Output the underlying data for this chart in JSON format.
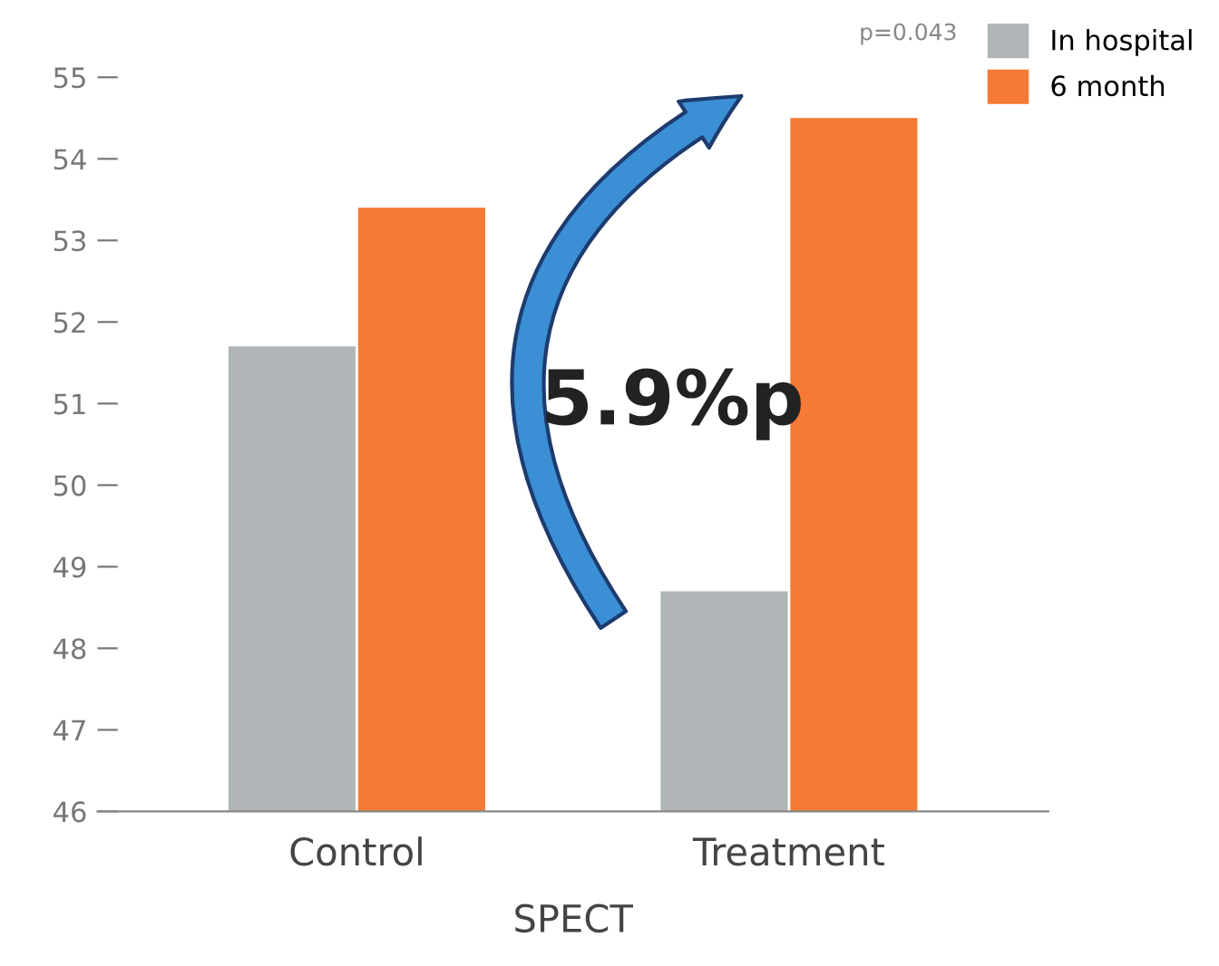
{
  "chart_data": {
    "type": "bar",
    "xlabel": "SPECT",
    "categories": [
      "Control",
      "Treatment"
    ],
    "series": [
      {
        "name": "In hospital",
        "color": "#b0b6b8",
        "values": [
          51.7,
          48.7
        ]
      },
      {
        "name": "6 month",
        "color": "#f47a35",
        "values": [
          53.4,
          54.5
        ]
      }
    ],
    "ylim": [
      46,
      55
    ],
    "yticks": [
      46,
      47,
      48,
      49,
      50,
      51,
      52,
      53,
      54,
      55
    ],
    "annotations": [
      "5.9%p",
      "p=0.043"
    ],
    "legend": "top right",
    "grid": false
  }
}
